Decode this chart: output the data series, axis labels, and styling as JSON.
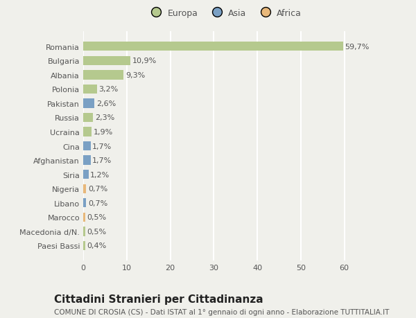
{
  "countries": [
    "Romania",
    "Bulgaria",
    "Albania",
    "Polonia",
    "Pakistan",
    "Russia",
    "Ucraina",
    "Cina",
    "Afghanistan",
    "Siria",
    "Nigeria",
    "Libano",
    "Marocco",
    "Macedonia d/N.",
    "Paesi Bassi"
  ],
  "values": [
    59.7,
    10.9,
    9.3,
    3.2,
    2.6,
    2.3,
    1.9,
    1.7,
    1.7,
    1.2,
    0.7,
    0.7,
    0.5,
    0.5,
    0.4
  ],
  "labels": [
    "59,7%",
    "10,9%",
    "9,3%",
    "3,2%",
    "2,6%",
    "2,3%",
    "1,9%",
    "1,7%",
    "1,7%",
    "1,2%",
    "0,7%",
    "0,7%",
    "0,5%",
    "0,5%",
    "0,4%"
  ],
  "continents": [
    "Europa",
    "Europa",
    "Europa",
    "Europa",
    "Asia",
    "Europa",
    "Europa",
    "Asia",
    "Asia",
    "Asia",
    "Africa",
    "Asia",
    "Africa",
    "Europa",
    "Europa"
  ],
  "colors": {
    "Europa": "#b5c98e",
    "Asia": "#7aa0c4",
    "Africa": "#e8b87a"
  },
  "xlim": [
    0,
    65
  ],
  "xticks": [
    0,
    10,
    20,
    30,
    40,
    50,
    60
  ],
  "title": "Cittadini Stranieri per Cittadinanza",
  "subtitle": "COMUNE DI CROSIA (CS) - Dati ISTAT al 1° gennaio di ogni anno - Elaborazione TUTTITALIA.IT",
  "background_color": "#f0f0eb",
  "grid_color": "#ffffff",
  "bar_height": 0.65,
  "label_fontsize": 8,
  "tick_fontsize": 8,
  "title_fontsize": 11,
  "subtitle_fontsize": 7.5
}
